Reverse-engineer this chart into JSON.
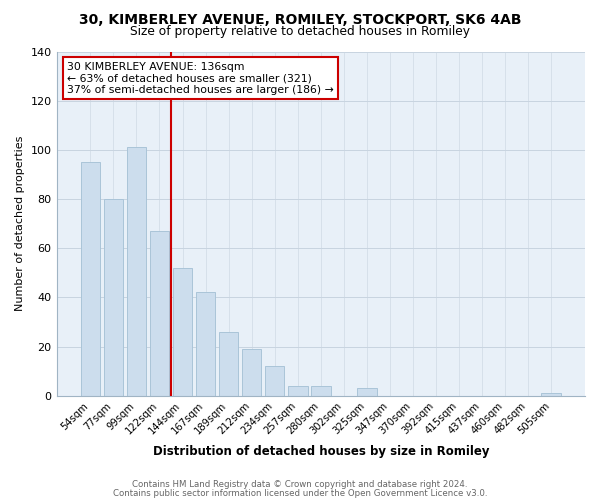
{
  "title_line1": "30, KIMBERLEY AVENUE, ROMILEY, STOCKPORT, SK6 4AB",
  "title_line2": "Size of property relative to detached houses in Romiley",
  "xlabel": "Distribution of detached houses by size in Romiley",
  "ylabel": "Number of detached properties",
  "bar_labels": [
    "54sqm",
    "77sqm",
    "99sqm",
    "122sqm",
    "144sqm",
    "167sqm",
    "189sqm",
    "212sqm",
    "234sqm",
    "257sqm",
    "280sqm",
    "302sqm",
    "325sqm",
    "347sqm",
    "370sqm",
    "392sqm",
    "415sqm",
    "437sqm",
    "460sqm",
    "482sqm",
    "505sqm"
  ],
  "bar_values": [
    95,
    80,
    101,
    67,
    52,
    42,
    26,
    19,
    12,
    4,
    4,
    0,
    3,
    0,
    0,
    0,
    0,
    0,
    0,
    0,
    1
  ],
  "bar_color": "#ccdded",
  "bar_edge_color": "#aac4d8",
  "vline_color": "#cc0000",
  "annotation_line1": "30 KIMBERLEY AVENUE: 136sqm",
  "annotation_line2": "← 63% of detached houses are smaller (321)",
  "annotation_line3": "37% of semi-detached houses are larger (186) →",
  "annotation_box_color": "#cc0000",
  "annotation_bg": "#ffffff",
  "ylim": [
    0,
    140
  ],
  "yticks": [
    0,
    20,
    40,
    60,
    80,
    100,
    120,
    140
  ],
  "footer_line1": "Contains HM Land Registry data © Crown copyright and database right 2024.",
  "footer_line2": "Contains public sector information licensed under the Open Government Licence v3.0.",
  "bg_color": "#ffffff",
  "plot_bg_color": "#e8f0f8",
  "grid_color": "#c8d4e0"
}
